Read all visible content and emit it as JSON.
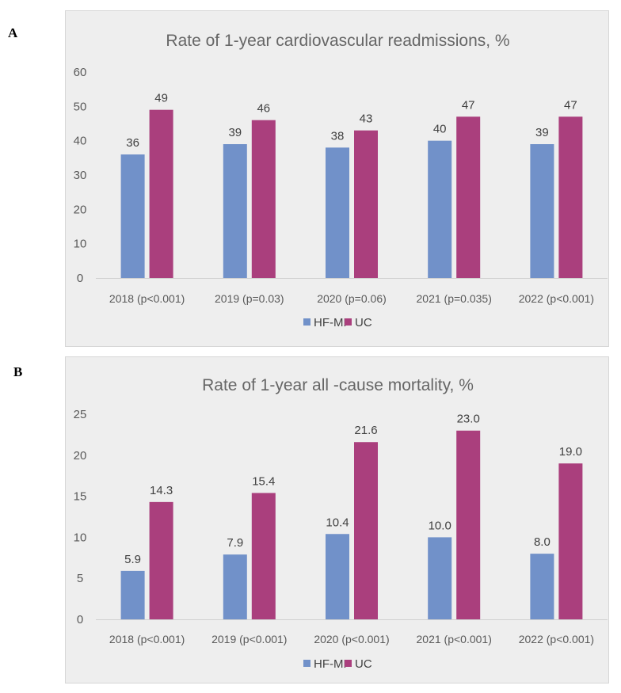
{
  "panels": [
    {
      "letter": "A"
    },
    {
      "letter": "B"
    }
  ],
  "chart_data": [
    {
      "type": "bar",
      "title": "Rate of 1-year cardiovascular readmissions, %",
      "categories": [
        "2018 (p<0.001)",
        "2019 (p=0.03)",
        "2020 (p=0.06)",
        "2021 (p=0.035)",
        "2022 (p<0.001)"
      ],
      "series": [
        {
          "name": "HF-MP",
          "color": "#7191c9",
          "values": [
            36,
            39,
            38,
            40,
            39
          ],
          "labels": [
            "36",
            "39",
            "38",
            "40",
            "39"
          ]
        },
        {
          "name": "UC",
          "color": "#aa3f7d",
          "values": [
            49,
            46,
            43,
            47,
            47
          ],
          "labels": [
            "49",
            "46",
            "43",
            "47",
            "47"
          ]
        }
      ],
      "yticks": [
        "0",
        "10",
        "20",
        "30",
        "40",
        "50",
        "60"
      ],
      "ylim": [
        0,
        60
      ],
      "legend": "bottom",
      "grid": false
    },
    {
      "type": "bar",
      "title": "Rate of 1-year all -cause mortality, %",
      "categories": [
        "2018 (p<0.001)",
        "2019 (p<0.001)",
        "2020 (p<0.001)",
        "2021 (p<0.001)",
        "2022 (p<0.001)"
      ],
      "series": [
        {
          "name": "HF-MP",
          "color": "#7191c9",
          "values": [
            5.9,
            7.9,
            10.4,
            10.0,
            8.0
          ],
          "labels": [
            "5.9",
            "7.9",
            "10.4",
            "10.0",
            "8.0"
          ]
        },
        {
          "name": "UC",
          "color": "#aa3f7d",
          "values": [
            14.3,
            15.4,
            21.6,
            23.0,
            19.0
          ],
          "labels": [
            "14.3",
            "15.4",
            "21.6",
            "23.0",
            "19.0"
          ]
        }
      ],
      "yticks": [
        "0",
        "5",
        "10",
        "15",
        "20",
        "25"
      ],
      "ylim": [
        0,
        25
      ],
      "legend": "bottom",
      "grid": false
    }
  ]
}
